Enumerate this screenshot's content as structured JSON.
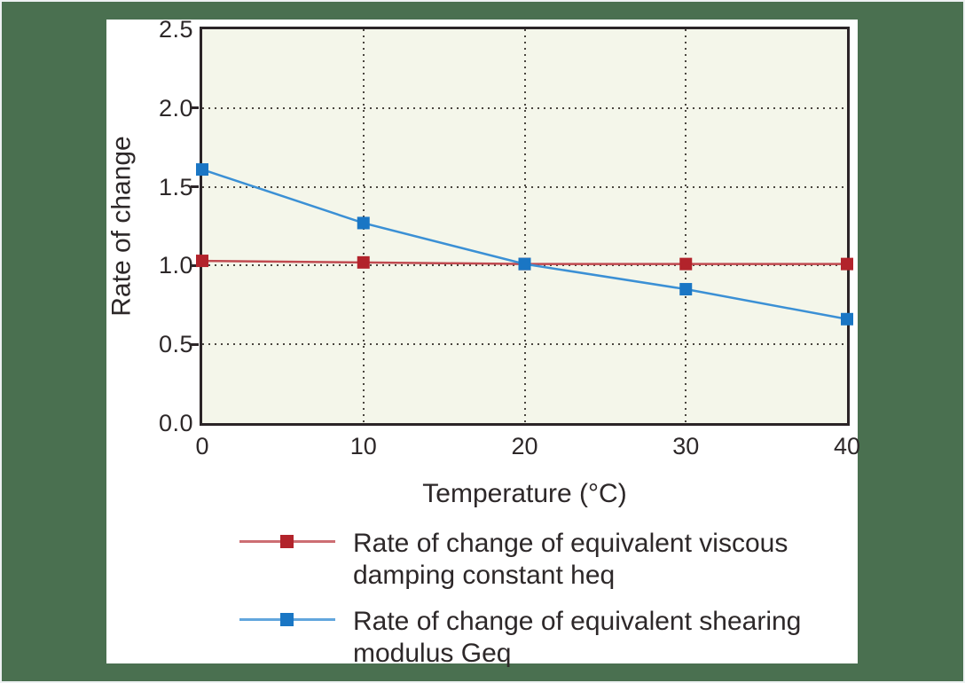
{
  "colors": {
    "background_green": "#4a7050",
    "canvas_white": "#ffffff",
    "plot_background": "#f4f6ea",
    "frame": "#2b2427",
    "grid_dots": "#4a463f",
    "text": "#2d2829",
    "series_red_line": "#c04a50",
    "series_red_marker": "#b2232b",
    "series_blue_line": "#3b90d5",
    "series_blue_marker": "#1a76c4"
  },
  "chart_data": {
    "type": "line",
    "title": "",
    "xlabel": "Temperature (°C)",
    "ylabel": "Rate of change",
    "xlim": [
      0,
      40
    ],
    "ylim": [
      0,
      2.5
    ],
    "xticks": [
      0,
      10,
      20,
      30,
      40
    ],
    "xtick_labels": [
      "0",
      "10",
      "20",
      "30",
      "40"
    ],
    "yticks": [
      0,
      0.5,
      1.0,
      1.5,
      2.0,
      2.5
    ],
    "ytick_labels": [
      "0.0",
      "0.5",
      "1.0",
      "1.5",
      "2.0",
      "2.5"
    ],
    "grid": "dotted",
    "marker": "square",
    "legend_position": "bottom",
    "x": [
      0,
      10,
      20,
      30,
      40
    ],
    "series": [
      {
        "name": "Rate of change of equivalent viscous damping constant heq",
        "values": [
          1.03,
          1.02,
          1.01,
          1.01,
          1.01
        ],
        "line_color": "#c04a50",
        "marker_color": "#b2232b"
      },
      {
        "name": "Rate of change of equivalent shearing modulus Geq",
        "values": [
          1.61,
          1.27,
          1.01,
          0.85,
          0.66
        ],
        "line_color": "#3b90d5",
        "marker_color": "#1a76c4"
      }
    ]
  },
  "legend": {
    "items": [
      {
        "label": "Rate of change of equivalent viscous damping constant heq"
      },
      {
        "label": "Rate of change of equivalent shearing modulus Geq"
      }
    ]
  }
}
